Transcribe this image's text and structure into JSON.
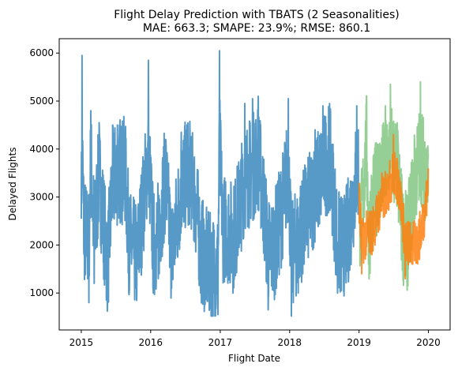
{
  "chart_data": {
    "type": "line",
    "title": "Flight Delay Prediction with TBATS (2 Seasonalities)",
    "subtitle": "MAE: 663.3; SMAPE: 23.9%; RMSE: 860.1",
    "xlabel": "Flight Date",
    "ylabel": "Delayed Flights",
    "xlim": [
      "2014-09-07",
      "2020-04-24"
    ],
    "ylim": [
      230,
      6300
    ],
    "x_ticks": [
      "2015",
      "2016",
      "2017",
      "2018",
      "2019",
      "2020"
    ],
    "y_ticks": [
      1000,
      2000,
      3000,
      4000,
      5000,
      6000
    ],
    "grid": false,
    "legend": "none",
    "series": [
      {
        "color": "#1f77b4",
        "opacity": 0.75,
        "x_start": "2015-01-01",
        "x_end": "2018-12-31",
        "description_points": [
          [
            "2015-01-01",
            2550
          ],
          [
            "2015-01-05",
            5950
          ],
          [
            "2015-01-15",
            1800
          ],
          [
            "2015-02-10",
            800
          ],
          [
            "2015-02-20",
            4800
          ],
          [
            "2015-03-10",
            1200
          ],
          [
            "2015-04-05",
            4550
          ],
          [
            "2015-05-20",
            920
          ],
          [
            "2015-06-15",
            4500
          ],
          [
            "2015-07-10",
            4500
          ],
          [
            "2015-08-20",
            4150
          ],
          [
            "2015-09-10",
            1000
          ],
          [
            "2015-10-20",
            1000
          ],
          [
            "2015-12-20",
            5850
          ],
          [
            "2016-01-15",
            1000
          ],
          [
            "2016-02-10",
            1300
          ],
          [
            "2016-03-20",
            4200
          ],
          [
            "2016-04-20",
            1100
          ],
          [
            "2016-06-10",
            4350
          ],
          [
            "2016-07-10",
            4500
          ],
          [
            "2016-08-05",
            3950
          ],
          [
            "2016-09-20",
            1000
          ],
          [
            "2016-10-05",
            850
          ],
          [
            "2016-12-20",
            550
          ],
          [
            "2016-12-28",
            6050
          ],
          [
            "2017-01-15",
            1800
          ],
          [
            "2017-03-10",
            1200
          ],
          [
            "2017-05-10",
            4950
          ],
          [
            "2017-06-20",
            5050
          ],
          [
            "2017-07-20",
            5100
          ],
          [
            "2017-09-10",
            650
          ],
          [
            "2017-10-05",
            1100
          ],
          [
            "2017-12-25",
            5050
          ],
          [
            "2018-01-10",
            520
          ],
          [
            "2018-02-15",
            1000
          ],
          [
            "2018-05-15",
            4400
          ],
          [
            "2018-06-25",
            4900
          ],
          [
            "2018-07-30",
            4950
          ],
          [
            "2018-09-10",
            1000
          ],
          [
            "2018-10-15",
            1300
          ],
          [
            "2018-12-20",
            4900
          ]
        ]
      },
      {
        "color": "#2ca02c",
        "opacity": 0.5,
        "x_start": "2019-01-01",
        "x_end": "2019-12-31",
        "description_points": [
          [
            "2019-01-01",
            3000
          ],
          [
            "2019-01-10",
            2000
          ],
          [
            "2019-02-10",
            5100
          ],
          [
            "2019-02-20",
            1600
          ],
          [
            "2019-04-10",
            4100
          ],
          [
            "2019-05-20",
            4900
          ],
          [
            "2019-06-15",
            5350
          ],
          [
            "2019-07-20",
            4200
          ],
          [
            "2019-08-20",
            1600
          ],
          [
            "2019-09-10",
            1300
          ],
          [
            "2019-10-20",
            4150
          ],
          [
            "2019-11-20",
            5400
          ],
          [
            "2019-12-31",
            3900
          ]
        ]
      },
      {
        "color": "#ff7f0e",
        "opacity": 0.85,
        "x_start": "2019-01-01",
        "x_end": "2019-12-31",
        "description_points": [
          [
            "2019-01-01",
            3300
          ],
          [
            "2019-01-15",
            1400
          ],
          [
            "2019-03-10",
            1800
          ],
          [
            "2019-05-01",
            3500
          ],
          [
            "2019-07-01",
            4300
          ],
          [
            "2019-08-01",
            3400
          ],
          [
            "2019-09-01",
            1300
          ],
          [
            "2019-10-10",
            1600
          ],
          [
            "2019-11-10",
            2000
          ],
          [
            "2019-12-31",
            3600
          ]
        ]
      }
    ]
  }
}
